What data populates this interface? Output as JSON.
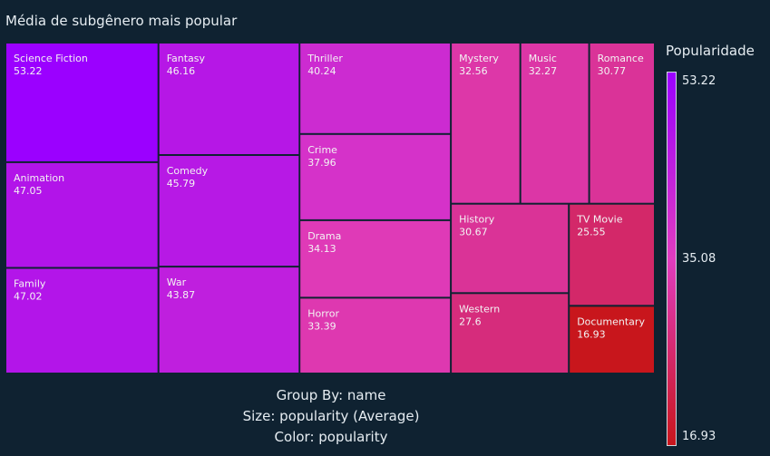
{
  "title": "Média de subgênero mais popular",
  "legend": {
    "title": "Popularidade",
    "max_label": "53.22",
    "mid_label": "35.08",
    "min_label": "16.93",
    "colors": [
      "#9b00ff",
      "#e03cbf",
      "#c8161c"
    ]
  },
  "footer": {
    "group_by": "Group By: name",
    "size": "Size: popularity (Average)",
    "color": "Color: popularity"
  },
  "chart_data": {
    "type": "treemap",
    "color_range": [
      16.93,
      53.22
    ],
    "items": [
      {
        "name": "Science Fiction",
        "value": 53.22
      },
      {
        "name": "Animation",
        "value": 47.05
      },
      {
        "name": "Family",
        "value": 47.02
      },
      {
        "name": "Fantasy",
        "value": 46.16
      },
      {
        "name": "Comedy",
        "value": 45.79
      },
      {
        "name": "War",
        "value": 43.87
      },
      {
        "name": "Thriller",
        "value": 40.24
      },
      {
        "name": "Crime",
        "value": 37.96
      },
      {
        "name": "Drama",
        "value": 34.13
      },
      {
        "name": "Horror",
        "value": 33.39
      },
      {
        "name": "Mystery",
        "value": 32.56
      },
      {
        "name": "Music",
        "value": 32.27
      },
      {
        "name": "Romance",
        "value": 30.77
      },
      {
        "name": "History",
        "value": 30.67
      },
      {
        "name": "Western",
        "value": 27.6
      },
      {
        "name": "TV Movie",
        "value": 25.55
      },
      {
        "name": "Documentary",
        "value": 16.93
      }
    ]
  }
}
